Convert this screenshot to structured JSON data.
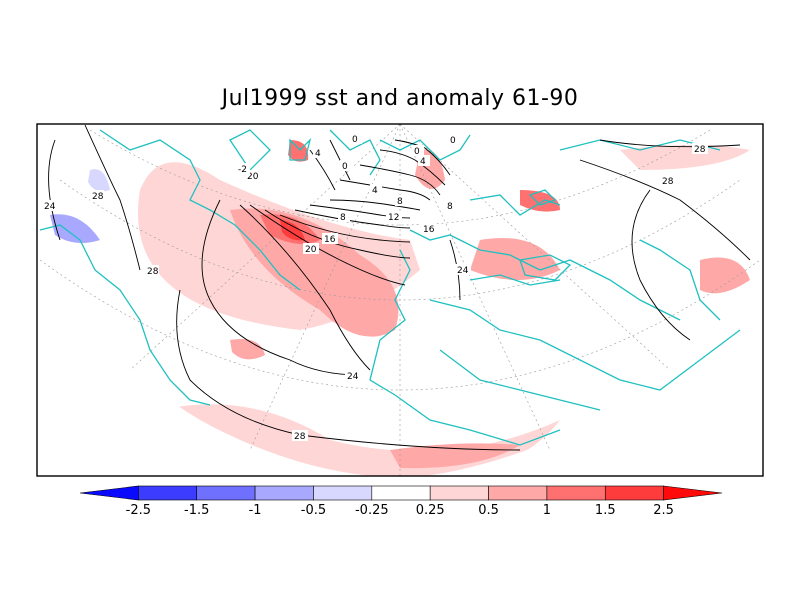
{
  "title": "Jul1999 sst and anomaly 61-90",
  "contour_labels": [
    "0",
    "0",
    "0",
    "0",
    "4",
    "4",
    "4",
    "8",
    "8",
    "12",
    "16",
    "16",
    "20",
    "20",
    "24",
    "24",
    "24",
    "28",
    "28",
    "28",
    "28",
    "28",
    "-2"
  ],
  "colorbar": {
    "levels": [
      "-2.5",
      "-1.5",
      "-1",
      "-0.5",
      "-0.25",
      "0.25",
      "0.5",
      "1",
      "1.5",
      "2.5"
    ],
    "colors": [
      "#0a0aff",
      "#3c3cff",
      "#7070ff",
      "#a8a8ff",
      "#d8d8ff",
      "#ffffff",
      "#ffd6d6",
      "#ffa8a8",
      "#ff7070",
      "#ff3c3c",
      "#ff0a0a"
    ]
  },
  "colors": {
    "coastline": "#20c0c0",
    "contour": "#000000",
    "frame": "#000000"
  }
}
